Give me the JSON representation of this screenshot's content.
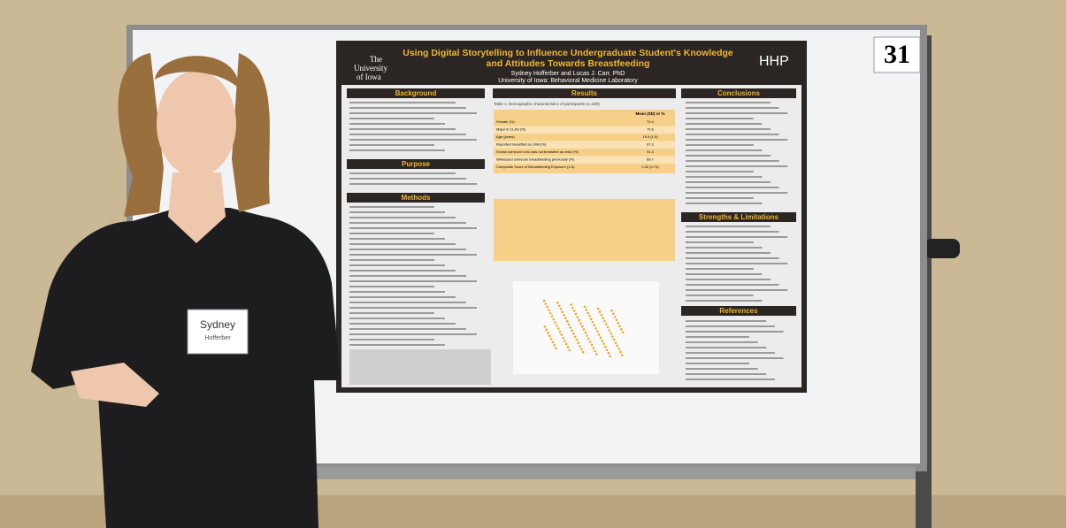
{
  "sign_number": "31",
  "poster": {
    "logo_left": [
      "The",
      "University",
      "of Iowa"
    ],
    "logo_right": "HHP",
    "title": [
      "Using Digital Storytelling to Influence Undergraduate Student's Knowledge",
      "and Attitudes Towards Breastfeeding"
    ],
    "authors": "Sydney Hofferber and Lucas J. Carr, PhD",
    "affiliation": "University of Iowa: Behavioral Medicine Laboratory",
    "sections": {
      "background": "Background",
      "purpose": "Purpose",
      "methods": "Methods",
      "results": "Results",
      "conclusions": "Conclusions",
      "strengths": "Strengths & Limitations",
      "references": "References"
    },
    "table1": {
      "caption": "Table 1. Demographic characteristics of participants (n=330)",
      "header": "Mean (SD) or %",
      "rows": [
        [
          "Female (%)",
          "70.4"
        ],
        [
          "Major in CLAS (%)",
          "70.6"
        ],
        [
          "Age (years)",
          "19.9 (1.5)"
        ],
        [
          "Reported breastfed as child (%)",
          "67.3"
        ],
        [
          "Knows someone who was not breastfed as child (%)",
          "91.3"
        ],
        [
          "Witnessed someone breastfeeding previously (%)",
          "89.7"
        ],
        [
          "Composite Score of Breastfeeding Exposure (1-5)",
          "2.52 (0.75)"
        ]
      ]
    }
  },
  "badge": {
    "name": "Sydney",
    "surname": "Hofferber"
  }
}
